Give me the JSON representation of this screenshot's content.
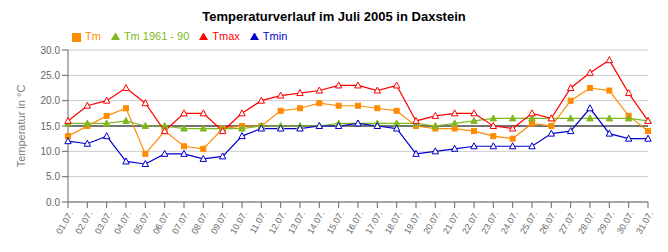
{
  "chart_data": {
    "type": "line",
    "title": "Temperaturverlauf im Juli 2005 in Daxstein",
    "ylabel": "Temperatur in °C",
    "categories": [
      "01.07.",
      "02.07.",
      "03.07.",
      "04.07.",
      "05.07.",
      "06.07.",
      "07.07.",
      "08.07.",
      "09.07.",
      "10.07.",
      "11.07.",
      "12.07.",
      "13.07.",
      "14.07.",
      "15.07.",
      "16.07.",
      "17.07.",
      "18.07.",
      "19.07.",
      "20.07.",
      "21.07.",
      "22.07.",
      "23.07.",
      "24.07.",
      "25.07.",
      "26.07.",
      "27.07.",
      "28.07.",
      "29.07.",
      "30.07.",
      "31.07."
    ],
    "series": [
      {
        "name": "Tm",
        "color": "#ff8c00",
        "marker": "square",
        "values": [
          13.0,
          15.0,
          17.0,
          18.5,
          9.5,
          14.0,
          11.0,
          10.5,
          14.5,
          15.0,
          15.0,
          18.0,
          18.5,
          19.5,
          19.0,
          19.0,
          18.5,
          18.0,
          15.0,
          14.5,
          14.5,
          14.0,
          13.0,
          12.5,
          15.5,
          15.0,
          20.0,
          22.5,
          22.0,
          17.0,
          14.0
        ]
      },
      {
        "name": "Tm 1961 - 90",
        "color": "#80b820",
        "marker": "triangle",
        "values": [
          15.5,
          15.5,
          15.5,
          16.0,
          15.0,
          15.0,
          14.5,
          14.5,
          14.5,
          14.5,
          15.0,
          15.0,
          15.0,
          15.0,
          15.5,
          15.5,
          15.5,
          15.5,
          15.5,
          15.0,
          15.5,
          16.0,
          16.5,
          16.5,
          16.5,
          16.5,
          16.5,
          16.5,
          16.5,
          16.5,
          16.0
        ]
      },
      {
        "name": "Tmax",
        "color": "#ff0000",
        "marker": "triangle_open",
        "values": [
          16.0,
          19.0,
          20.0,
          22.5,
          19.5,
          14.0,
          17.5,
          17.5,
          14.0,
          17.5,
          20.0,
          21.0,
          21.5,
          22.0,
          23.0,
          23.0,
          22.0,
          23.0,
          16.0,
          17.0,
          17.5,
          17.5,
          15.0,
          14.5,
          17.5,
          16.5,
          22.5,
          25.5,
          28.0,
          21.5,
          16.0
        ]
      },
      {
        "name": "Tmin",
        "color": "#0000cc",
        "marker": "triangle_open",
        "values": [
          12.0,
          11.5,
          13.0,
          8.0,
          7.5,
          9.5,
          9.5,
          8.5,
          9.0,
          13.0,
          14.5,
          14.5,
          14.5,
          15.0,
          15.0,
          15.5,
          15.0,
          14.5,
          9.5,
          10.0,
          10.5,
          11.0,
          11.0,
          11.0,
          11.0,
          13.5,
          14.0,
          18.5,
          13.5,
          12.5,
          12.5
        ]
      }
    ],
    "hlines": [
      {
        "value": 15.0,
        "color": "#000000"
      }
    ],
    "ylim": [
      0.0,
      30.0
    ],
    "yticks": [
      {
        "value": 0.0,
        "label": "0.0"
      },
      {
        "value": 5.0,
        "label": "5.0"
      },
      {
        "value": 10.0,
        "label": "10.0"
      },
      {
        "value": 15.0,
        "label": "15.0"
      },
      {
        "value": 20.0,
        "label": "20.0"
      },
      {
        "value": 25.0,
        "label": "25.0"
      },
      {
        "value": 30.0,
        "label": "30.0"
      }
    ],
    "grid": true,
    "legend": "upper left"
  }
}
